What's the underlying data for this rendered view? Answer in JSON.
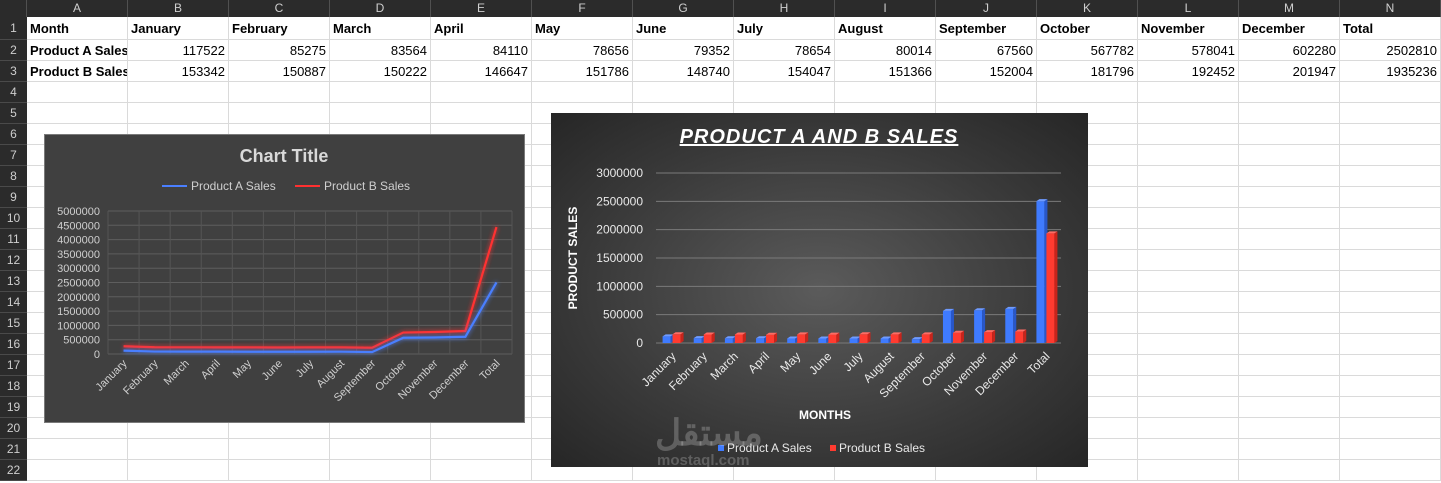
{
  "spreadsheet": {
    "columns": [
      "A",
      "B",
      "C",
      "D",
      "E",
      "F",
      "G",
      "H",
      "I",
      "J",
      "K",
      "L",
      "M",
      "N"
    ],
    "rows": [
      "1",
      "2",
      "3",
      "4",
      "5",
      "6",
      "7",
      "8",
      "9",
      "10",
      "11",
      "12",
      "13",
      "14",
      "15",
      "16",
      "17",
      "18",
      "19",
      "20",
      "21",
      "22"
    ],
    "header_row": [
      "Month",
      "January",
      "February",
      "March",
      "April",
      "May",
      "June",
      "July",
      "August",
      "September",
      "October",
      "November",
      "December",
      "Total"
    ],
    "data_rows": [
      [
        "Product A Sales",
        "117522",
        "85275",
        "83564",
        "84110",
        "78656",
        "79352",
        "78654",
        "80014",
        "67560",
        "567782",
        "578041",
        "602280",
        "2502810"
      ],
      [
        "Product B Sales",
        "153342",
        "150887",
        "150222",
        "146647",
        "151786",
        "148740",
        "154047",
        "151366",
        "152004",
        "181796",
        "192452",
        "201947",
        "1935236"
      ]
    ]
  },
  "chart_data": [
    {
      "type": "line",
      "title": "Chart Title",
      "categories": [
        "January",
        "February",
        "March",
        "April",
        "May",
        "June",
        "July",
        "August",
        "September",
        "October",
        "November",
        "December",
        "Total"
      ],
      "series": [
        {
          "name": "Product A Sales",
          "color": "#4a7fff",
          "values": [
            117522,
            85275,
            83564,
            84110,
            78656,
            79352,
            78654,
            80014,
            67560,
            567782,
            578041,
            602280,
            2502810
          ]
        },
        {
          "name": "Product B Sales",
          "color": "#ff3030",
          "values": [
            153342,
            150887,
            150222,
            146647,
            151786,
            148740,
            154047,
            151366,
            152004,
            181796,
            192452,
            201947,
            1935236
          ]
        }
      ],
      "stacked": true,
      "ylim": [
        0,
        5000000
      ],
      "yticks": [
        "5000000",
        "4500000",
        "4000000",
        "3500000",
        "3000000",
        "2500000",
        "2000000",
        "1500000",
        "1000000",
        "500000",
        "0"
      ],
      "legend": "top",
      "grid": true
    },
    {
      "type": "bar",
      "title": "PRODUCT A AND B SALES",
      "xlabel": "MONTHS",
      "ylabel": "PRODUCT SALES",
      "categories": [
        "January",
        "February",
        "March",
        "April",
        "May",
        "June",
        "July",
        "August",
        "September",
        "October",
        "November",
        "December",
        "Total"
      ],
      "series": [
        {
          "name": "Product A Sales",
          "color": "#3f7bff",
          "values": [
            117522,
            85275,
            83564,
            84110,
            78656,
            79352,
            78654,
            80014,
            67560,
            567782,
            578041,
            602280,
            2502810
          ]
        },
        {
          "name": "Product B Sales",
          "color": "#ff3b30",
          "values": [
            153342,
            150887,
            150222,
            146647,
            151786,
            148740,
            154047,
            151366,
            152004,
            181796,
            192452,
            201947,
            1935236
          ]
        }
      ],
      "ylim": [
        0,
        3000000
      ],
      "yticks": [
        "3000000",
        "2500000",
        "2000000",
        "1500000",
        "1000000",
        "500000",
        "0"
      ],
      "legend": "bottom",
      "grid": true
    }
  ],
  "watermark": {
    "arabic": "مستقل",
    "latin": "mostaql.com"
  }
}
